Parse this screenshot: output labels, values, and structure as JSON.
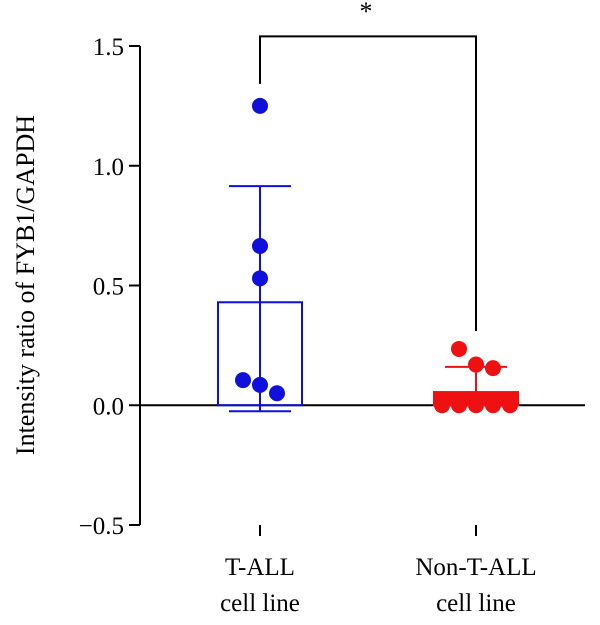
{
  "chart_data": {
    "type": "bar",
    "title": "",
    "xlabel": "",
    "ylabel": "Intensity ratio of FYB1/GAPDH",
    "ylim": [
      -0.5,
      1.5
    ],
    "yticks": [
      {
        "value": -0.5,
        "label": "−0.5"
      },
      {
        "value": 0.0,
        "label": "0.0"
      },
      {
        "value": 0.5,
        "label": "0.5"
      },
      {
        "value": 1.0,
        "label": "1.0"
      },
      {
        "value": 1.5,
        "label": "1.5"
      }
    ],
    "grid": false,
    "categories": [
      {
        "lines": [
          "T-ALL",
          "cell line"
        ]
      },
      {
        "lines": [
          "Non-T-ALL",
          "cell line"
        ]
      }
    ],
    "groups": [
      {
        "mean": 0.43,
        "sd_upper": 0.915,
        "sd_lower": -0.025,
        "color": "#1010dd",
        "bar_fill": "none",
        "points": [
          1.25,
          0.665,
          0.53,
          0.105,
          0.085,
          0.05
        ]
      },
      {
        "mean": 0.055,
        "sd_upper": 0.16,
        "sd_lower": 0.0,
        "color": "#ee1111",
        "bar_fill": "#ee1111",
        "points": [
          0.235,
          0.17,
          0.155,
          0.0,
          0.0,
          0.0,
          0.0,
          0.0
        ]
      }
    ],
    "significance": {
      "label": "*",
      "level": 1.54
    }
  }
}
